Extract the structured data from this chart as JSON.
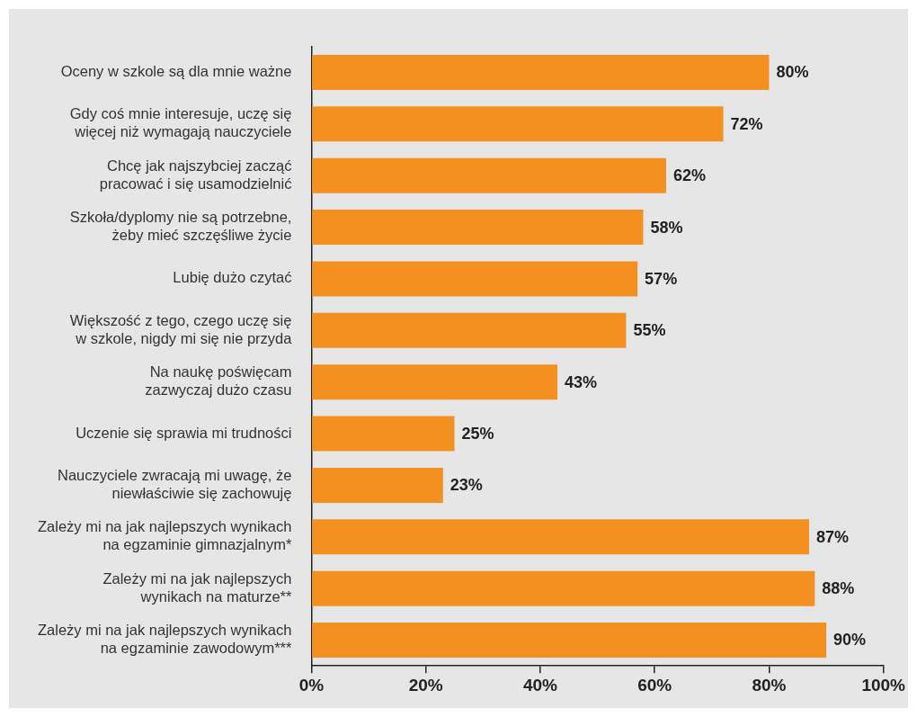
{
  "chart_data": {
    "type": "bar",
    "orientation": "horizontal",
    "categories": [
      "Oceny w szkole są dla mnie ważne",
      "Gdy coś mnie interesuje, uczę się\nwięcej niż wymagają nauczyciele",
      "Chcę jak najszybciej zacząć\npracować i się usamodzielnić",
      "Szkoła/dyplomy nie są potrzebne,\nżeby mieć szczęśliwe życie",
      "Lubię dużo czytać",
      "Większość z tego, czego uczę się\nw szkole, nigdy mi się nie przyda",
      "Na naukę poświęcam\nzazwyczaj dużo czasu",
      "Uczenie się sprawia mi trudności",
      "Nauczyciele zwracają mi uwagę, że\nniewłaściwie się zachowuję",
      "Zależy mi na jak najlepszych wynikach\nna egzaminie gimnazjalnym*",
      "Zależy mi na jak najlepszych\nwynikach na maturze**",
      "Zależy mi na jak najlepszych wynikach\nna egzaminie zawodowym***"
    ],
    "values": [
      80,
      72,
      62,
      58,
      57,
      55,
      43,
      25,
      23,
      87,
      88,
      90
    ],
    "value_labels": [
      "80%",
      "72%",
      "62%",
      "58%",
      "57%",
      "55%",
      "43%",
      "25%",
      "23%",
      "87%",
      "88%",
      "90%"
    ],
    "color": "#f39020",
    "xlim": [
      0,
      100
    ],
    "xticks": [
      {
        "value": 0,
        "label": "0%"
      },
      {
        "value": 20,
        "label": "20%"
      },
      {
        "value": 40,
        "label": "40%"
      },
      {
        "value": 60,
        "label": "60%"
      },
      {
        "value": 80,
        "label": "80%"
      },
      {
        "value": 100,
        "label": "100%"
      }
    ],
    "grid": false,
    "legend": false
  }
}
